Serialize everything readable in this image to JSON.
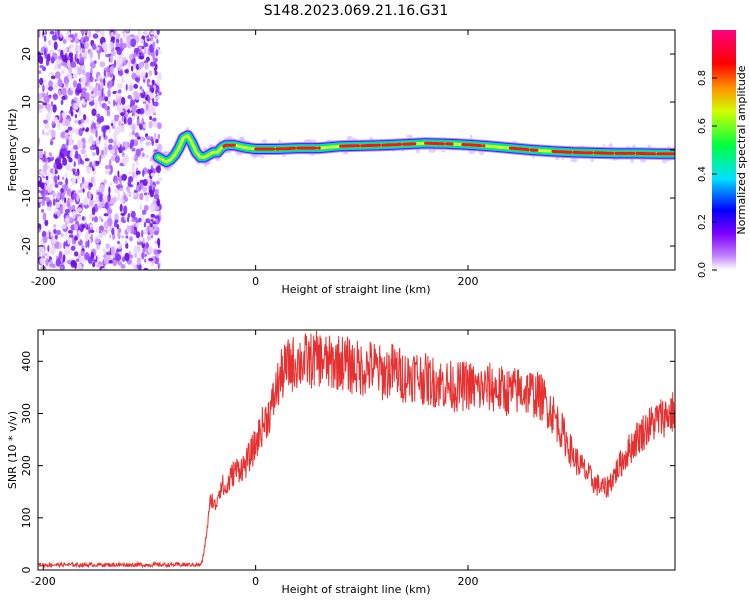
{
  "title": "S148.2023.069.21.16.G31",
  "chart_data": [
    {
      "type": "heatmap",
      "xlabel": "Height of straight line (km)",
      "ylabel": "Frequency (Hz)",
      "xlim": [
        -205,
        395
      ],
      "ylim": [
        -25,
        25
      ],
      "xticks": [
        "-200",
        "0",
        "200"
      ],
      "yticks": [
        "20",
        "10",
        "0",
        "-10",
        "-20"
      ],
      "xtick_values": [
        -200,
        0,
        200
      ],
      "ytick_values": [
        20,
        10,
        0,
        -10,
        -20
      ],
      "noise_region_x": [
        -205,
        -90
      ],
      "ridge": {
        "x": [
          -92,
          -88,
          -84,
          -80,
          -76,
          -72,
          -68,
          -64,
          -60,
          -56,
          -52,
          -48,
          -44,
          -40,
          -36,
          -32,
          -28,
          -24,
          -20,
          -10,
          0,
          20,
          40,
          60,
          80,
          100,
          120,
          140,
          160,
          180,
          200,
          220,
          240,
          260,
          280,
          300,
          320,
          340,
          360,
          380,
          395
        ],
        "frequency": [
          -1.5,
          -2.0,
          -2.5,
          -2.0,
          -1.0,
          0.5,
          2.5,
          3.0,
          1.5,
          -0.5,
          -1.5,
          -1.5,
          -1.0,
          -0.5,
          -0.5,
          0.5,
          1.0,
          1.0,
          1.0,
          0.5,
          0.2,
          0.2,
          0.4,
          0.4,
          0.8,
          0.9,
          1.0,
          1.2,
          1.4,
          1.3,
          1.1,
          0.8,
          0.4,
          0.0,
          -0.3,
          -0.5,
          -0.6,
          -0.7,
          -0.7,
          -0.8,
          -0.8
        ]
      },
      "colorbar": {
        "label": "Normalized spectral amplitude",
        "ticks": [
          "0.0",
          "0.2",
          "0.4",
          "0.6",
          "0.8"
        ],
        "tick_values": [
          0.0,
          0.2,
          0.4,
          0.6,
          0.8
        ],
        "range": [
          0,
          1
        ],
        "colors": [
          "#ffffff",
          "#8000ff",
          "#0000ff",
          "#00ffff",
          "#00ff00",
          "#ffff00",
          "#ff8000",
          "#ff0000",
          "#ff0080"
        ]
      }
    },
    {
      "type": "line",
      "xlabel": "Height of straight line (km)",
      "ylabel": "SNR (10 * v/v)",
      "xlim": [
        -205,
        395
      ],
      "ylim": [
        0,
        460
      ],
      "xticks": [
        "-200",
        "0",
        "200"
      ],
      "yticks": [
        "0",
        "100",
        "200",
        "300",
        "400"
      ],
      "xtick_values": [
        -200,
        0,
        200
      ],
      "ytick_values": [
        0,
        100,
        200,
        300,
        400
      ],
      "color": "#e83030",
      "series": [
        {
          "x": [
            -205,
            -140,
            -100,
            -60,
            -52,
            -50,
            -48,
            -45,
            -42,
            -38,
            -35,
            -32,
            -28,
            -25,
            -20,
            -15,
            -10,
            -5,
            0,
            5,
            10,
            15,
            20,
            25,
            30,
            35,
            40,
            50,
            60,
            70,
            80,
            90,
            100,
            110,
            120,
            130,
            140,
            150,
            160,
            170,
            180,
            190,
            200,
            210,
            220,
            230,
            240,
            250,
            260,
            270,
            280,
            290,
            300,
            310,
            320,
            330,
            340,
            350,
            360,
            370,
            380,
            390,
            395
          ],
          "y": [
            10,
            10,
            10,
            10,
            10,
            18,
            45,
            90,
            140,
            120,
            150,
            165,
            150,
            170,
            190,
            195,
            200,
            220,
            240,
            270,
            290,
            310,
            350,
            375,
            390,
            395,
            400,
            400,
            405,
            395,
            400,
            390,
            385,
            390,
            375,
            385,
            370,
            375,
            365,
            360,
            355,
            350,
            355,
            345,
            350,
            345,
            340,
            345,
            340,
            330,
            300,
            260,
            215,
            190,
            165,
            155,
            190,
            225,
            255,
            275,
            290,
            300,
            305
          ]
        }
      ]
    }
  ]
}
